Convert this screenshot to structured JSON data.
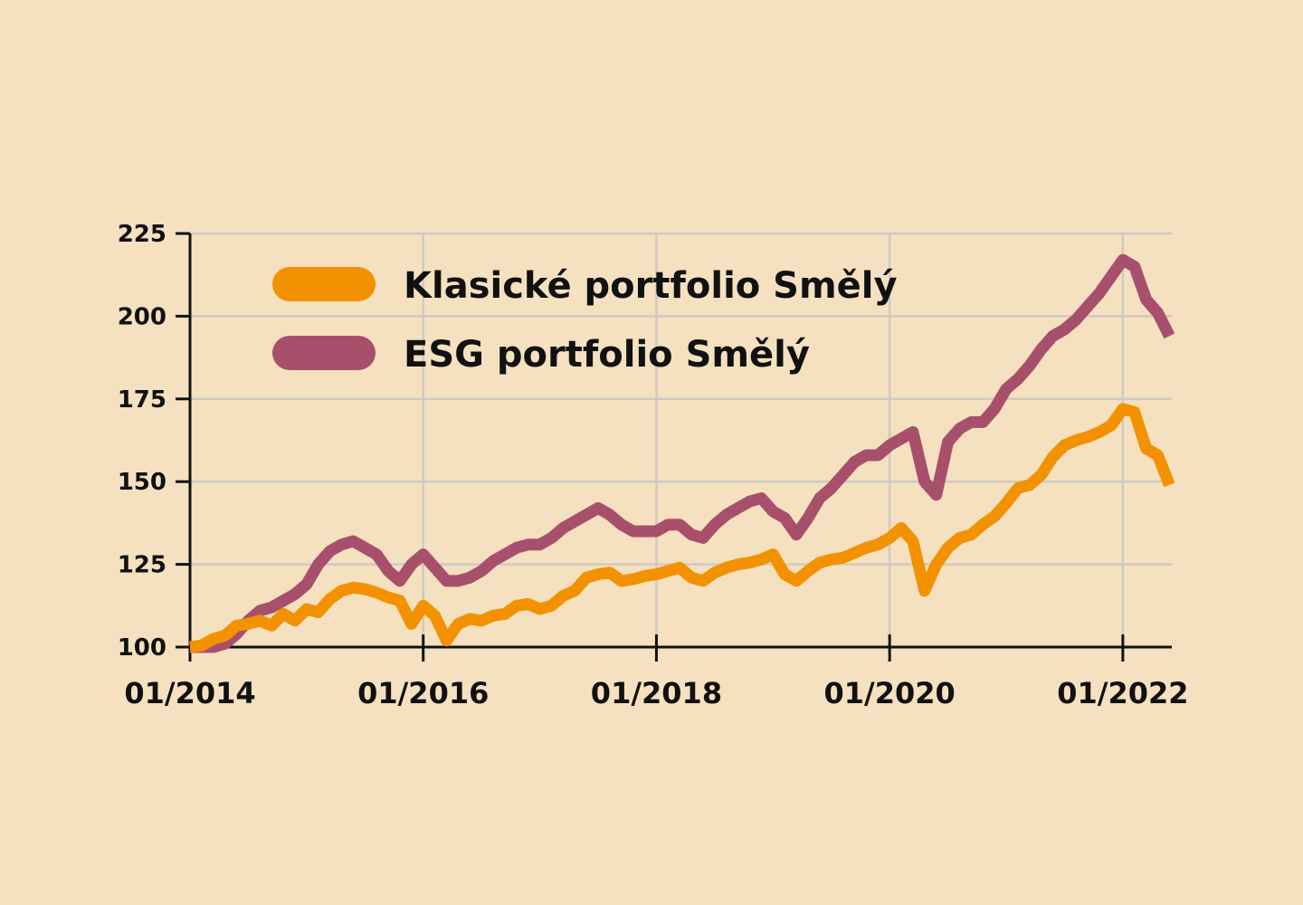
{
  "chart_data": {
    "type": "line",
    "title": "",
    "xlabel": "",
    "ylabel": "",
    "xlim": [
      2014.0,
      2022.42
    ],
    "ylim": [
      100,
      225
    ],
    "yticks": [
      100,
      125,
      150,
      175,
      200,
      225
    ],
    "xticks": [
      {
        "value": 2014,
        "label": "01/2014"
      },
      {
        "value": 2016,
        "label": "01/2016"
      },
      {
        "value": 2018,
        "label": "01/2018"
      },
      {
        "value": 2020,
        "label": "01/2020"
      },
      {
        "value": 2022,
        "label": "01/2022"
      }
    ],
    "grid": true,
    "legend": "top-left",
    "series": [
      {
        "name": "Klasické portfolio Smělý",
        "color": "#f39200",
        "x": [
          2014.0,
          2014.1,
          2014.2,
          2014.3,
          2014.4,
          2014.5,
          2014.6,
          2014.7,
          2014.8,
          2014.9,
          2015.0,
          2015.1,
          2015.2,
          2015.3,
          2015.4,
          2015.5,
          2015.6,
          2015.7,
          2015.8,
          2015.9,
          2016.0,
          2016.1,
          2016.2,
          2016.3,
          2016.4,
          2016.5,
          2016.6,
          2016.7,
          2016.8,
          2016.9,
          2017.0,
          2017.1,
          2017.2,
          2017.3,
          2017.4,
          2017.5,
          2017.6,
          2017.7,
          2017.8,
          2017.9,
          2018.0,
          2018.1,
          2018.2,
          2018.3,
          2018.4,
          2018.5,
          2018.6,
          2018.7,
          2018.8,
          2018.9,
          2019.0,
          2019.1,
          2019.2,
          2019.3,
          2019.4,
          2019.5,
          2019.6,
          2019.7,
          2019.8,
          2019.9,
          2020.0,
          2020.1,
          2020.2,
          2020.3,
          2020.4,
          2020.5,
          2020.6,
          2020.7,
          2020.8,
          2020.9,
          2021.0,
          2021.1,
          2021.2,
          2021.3,
          2021.4,
          2021.5,
          2021.6,
          2021.7,
          2021.8,
          2021.9,
          2022.0,
          2022.1,
          2022.2,
          2022.3,
          2022.4
        ],
        "values": [
          100,
          100.5,
          102.5,
          103.5,
          106.5,
          107,
          108,
          106.5,
          110,
          108,
          111.5,
          110.5,
          114.5,
          117,
          118,
          117.5,
          116.5,
          115,
          114,
          107,
          112.5,
          109.5,
          102,
          107,
          108.5,
          108,
          109.5,
          110,
          112.5,
          113,
          111.5,
          112.5,
          115.5,
          117,
          121,
          122,
          122.5,
          120,
          120.5,
          121.5,
          122,
          123,
          124,
          121,
          120,
          122.5,
          124,
          125,
          125.5,
          126.5,
          128,
          122,
          120,
          123,
          125.5,
          126.5,
          127,
          128.5,
          130,
          131,
          133,
          136,
          132,
          117,
          125,
          130,
          133,
          134,
          137,
          139.5,
          143.5,
          148,
          149,
          152,
          157.5,
          161,
          162.5,
          163.5,
          165,
          167,
          172,
          171,
          160,
          158,
          149
        ]
      },
      {
        "name": "ESG portfolio Smělý",
        "color": "#a8506b",
        "x": [
          2014.0,
          2014.1,
          2014.2,
          2014.3,
          2014.4,
          2014.5,
          2014.6,
          2014.7,
          2014.8,
          2014.9,
          2015.0,
          2015.1,
          2015.2,
          2015.3,
          2015.4,
          2015.5,
          2015.6,
          2015.7,
          2015.8,
          2015.9,
          2016.0,
          2016.1,
          2016.2,
          2016.3,
          2016.4,
          2016.5,
          2016.6,
          2016.7,
          2016.8,
          2016.9,
          2017.0,
          2017.1,
          2017.2,
          2017.3,
          2017.4,
          2017.5,
          2017.6,
          2017.7,
          2017.8,
          2017.9,
          2018.0,
          2018.1,
          2018.2,
          2018.3,
          2018.4,
          2018.5,
          2018.6,
          2018.7,
          2018.8,
          2018.9,
          2019.0,
          2019.1,
          2019.2,
          2019.3,
          2019.4,
          2019.5,
          2019.6,
          2019.7,
          2019.8,
          2019.9,
          2020.0,
          2020.1,
          2020.2,
          2020.3,
          2020.4,
          2020.5,
          2020.6,
          2020.7,
          2020.8,
          2020.9,
          2021.0,
          2021.1,
          2021.2,
          2021.3,
          2021.4,
          2021.5,
          2021.6,
          2021.7,
          2021.8,
          2021.9,
          2022.0,
          2022.1,
          2022.2,
          2022.3,
          2022.4
        ],
        "values": [
          100,
          100,
          100,
          101,
          104,
          108,
          111,
          112,
          114,
          116,
          119,
          125,
          129,
          131,
          132,
          130,
          128,
          123,
          120,
          125,
          128,
          124,
          120,
          120,
          121,
          123,
          126,
          128,
          130,
          131,
          131,
          133,
          136,
          138,
          140,
          142,
          140,
          137,
          135,
          135,
          135,
          137,
          137,
          134,
          133,
          137,
          140,
          142,
          144,
          145,
          141,
          139,
          134,
          139,
          145,
          148,
          152,
          156,
          158,
          158,
          161,
          163,
          165,
          150,
          146,
          162,
          166,
          168,
          168,
          172,
          178,
          181,
          185,
          190,
          194,
          196,
          199,
          203,
          207,
          212,
          217,
          215,
          205,
          201,
          194
        ]
      }
    ]
  }
}
